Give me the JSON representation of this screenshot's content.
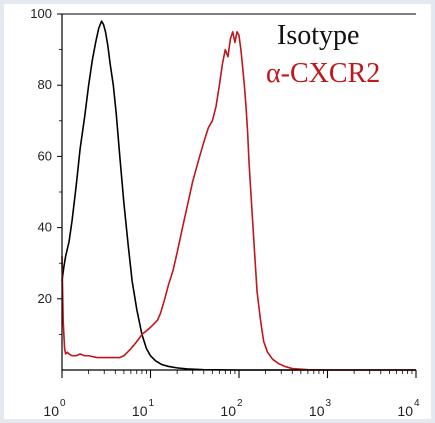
{
  "chart_data": {
    "type": "line",
    "title": "",
    "xlabel": "",
    "ylabel": "",
    "x_scale": "log",
    "xlim": [
      1,
      10000
    ],
    "ylim": [
      0,
      100
    ],
    "grid": false,
    "legend_placement": "top-right",
    "y_ticks": [
      "20",
      "40",
      "60",
      "80",
      "100"
    ],
    "x_ticks": [
      {
        "base": "10",
        "exp": "0",
        "value": 1
      },
      {
        "base": "10",
        "exp": "1",
        "value": 10
      },
      {
        "base": "10",
        "exp": "2",
        "value": 100
      },
      {
        "base": "10",
        "exp": "3",
        "value": 1000
      },
      {
        "base": "10",
        "exp": "4",
        "value": 10000
      }
    ],
    "series": [
      {
        "name": "Isotype",
        "color": "#000000",
        "x": [
          1.0,
          1.05,
          1.1,
          1.2,
          1.3,
          1.45,
          1.6,
          1.8,
          2.0,
          2.2,
          2.4,
          2.6,
          2.8,
          2.95,
          3.1,
          3.3,
          3.5,
          3.8,
          4.1,
          4.5,
          5.0,
          5.6,
          6.2,
          7.0,
          8.0,
          9.0,
          10.0,
          11.5,
          13.5,
          16.0,
          20.0,
          26.0,
          40.0,
          100.0,
          1000.0,
          10000.0
        ],
        "y": [
          25,
          29,
          32,
          36,
          42,
          52,
          62,
          71,
          80,
          87,
          92,
          96,
          98,
          97,
          95,
          91,
          86,
          80,
          72,
          60,
          47,
          35,
          25,
          17,
          10,
          6,
          4,
          2.5,
          1.5,
          1,
          0.6,
          0.3,
          0.1,
          0,
          0,
          0
        ]
      },
      {
        "name": "α-CXCR2",
        "color": "#c0161c",
        "x": [
          1.0,
          1.03,
          1.07,
          1.1,
          1.15,
          1.2,
          1.3,
          1.45,
          1.6,
          1.8,
          2.0,
          2.5,
          3.0,
          3.5,
          4.0,
          4.5,
          5.0,
          5.5,
          6.0,
          6.5,
          7.0,
          7.5,
          8.0,
          9.0,
          10.0,
          11.0,
          12.0,
          13.0,
          14.5,
          16.0,
          18.0,
          20.0,
          23.0,
          26.0,
          30.0,
          35.0,
          40.0,
          45.0,
          50.0,
          55.0,
          60.0,
          65.0,
          70.0,
          75.0,
          80.0,
          85.0,
          90.0,
          95.0,
          100.0,
          105.0,
          110.0,
          115.0,
          120.0,
          125.0,
          130.0,
          140.0,
          150.0,
          160.0,
          175.0,
          190.0,
          210.0,
          240.0,
          280.0,
          330.0,
          400.0,
          600.0,
          1000.0,
          10000.0
        ],
        "y": [
          32,
          14,
          6,
          4.5,
          5,
          4.5,
          4,
          4,
          4.5,
          4,
          4,
          3.5,
          3.5,
          3.5,
          3.5,
          3.5,
          4,
          5,
          6,
          7,
          8,
          9,
          10,
          11,
          12,
          13,
          14,
          16,
          20,
          24,
          28,
          33,
          40,
          46,
          53,
          59,
          64,
          68,
          70,
          74,
          80,
          86,
          90,
          88,
          93,
          95,
          92,
          95,
          94,
          90,
          85,
          80,
          74,
          67,
          58,
          45,
          33,
          22,
          14,
          8,
          5,
          3,
          1.8,
          1,
          0.4,
          0.1,
          0,
          0
        ]
      }
    ]
  }
}
